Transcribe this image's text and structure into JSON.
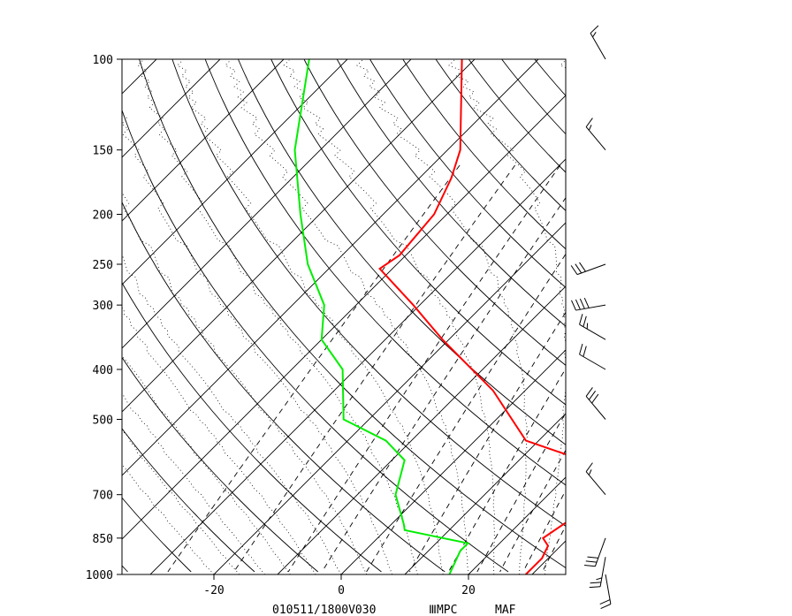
{
  "chart_data": {
    "type": "line",
    "title": "",
    "xlabel": "",
    "ylabel": "",
    "footer": {
      "stamp": "010511/1800V030",
      "source": "ⅢMPC",
      "station": "MAF"
    },
    "x_ticks": [
      "-20",
      "0",
      "20"
    ],
    "x_tick_values": [
      -20,
      0,
      20
    ],
    "y_ticks": [
      "100",
      "150",
      "200",
      "250",
      "300",
      "400",
      "500",
      "700",
      "850",
      "1000"
    ],
    "y_tick_values": [
      100,
      150,
      200,
      250,
      300,
      400,
      500,
      700,
      850,
      1000
    ],
    "xlim": [
      -34,
      35
    ],
    "ylim": [
      1000,
      100
    ],
    "y_scale": "log",
    "skew": "temperature isotherms skewed 45°",
    "grid": true,
    "series": [
      {
        "color": "#ff0000",
        "points": [
          {
            "p": 1000,
            "t": 29
          },
          {
            "p": 930,
            "t": 29
          },
          {
            "p": 880,
            "t": 28
          },
          {
            "p": 850,
            "t": 26
          },
          {
            "p": 800,
            "t": 27
          },
          {
            "p": 730,
            "t": 29
          },
          {
            "p": 600,
            "t": 20
          },
          {
            "p": 550,
            "t": 8
          },
          {
            "p": 440,
            "t": -5
          },
          {
            "p": 350,
            "t": -21
          },
          {
            "p": 300,
            "t": -31
          },
          {
            "p": 255,
            "t": -42
          },
          {
            "p": 240,
            "t": -41
          },
          {
            "p": 200,
            "t": -42
          },
          {
            "p": 170,
            "t": -45
          },
          {
            "p": 150,
            "t": -48
          },
          {
            "p": 100,
            "t": -62
          }
        ]
      },
      {
        "color": "#00ee00",
        "points": [
          {
            "p": 1000,
            "t": 17
          },
          {
            "p": 900,
            "t": 15
          },
          {
            "p": 870,
            "t": 15
          },
          {
            "p": 820,
            "t": 3
          },
          {
            "p": 800,
            "t": 2
          },
          {
            "p": 700,
            "t": -4
          },
          {
            "p": 600,
            "t": -8
          },
          {
            "p": 550,
            "t": -14
          },
          {
            "p": 500,
            "t": -24
          },
          {
            "p": 400,
            "t": -32
          },
          {
            "p": 350,
            "t": -40
          },
          {
            "p": 300,
            "t": -45
          },
          {
            "p": 250,
            "t": -54
          },
          {
            "p": 200,
            "t": -63
          },
          {
            "p": 150,
            "t": -74
          },
          {
            "p": 100,
            "t": -86
          }
        ]
      }
    ],
    "wind_barbs": [
      {
        "p": 1000,
        "dir": 170,
        "speed": 20
      },
      {
        "p": 925,
        "dir": 190,
        "speed": 25
      },
      {
        "p": 850,
        "dir": 200,
        "speed": 30
      },
      {
        "p": 700,
        "dir": 320,
        "speed": 15
      },
      {
        "p": 500,
        "dir": 320,
        "speed": 30
      },
      {
        "p": 400,
        "dir": 300,
        "speed": 20
      },
      {
        "p": 350,
        "dir": 300,
        "speed": 25
      },
      {
        "p": 300,
        "dir": 260,
        "speed": 40
      },
      {
        "p": 250,
        "dir": 250,
        "speed": 30
      },
      {
        "p": 150,
        "dir": 320,
        "speed": 15
      },
      {
        "p": 100,
        "dir": 330,
        "speed": 15
      }
    ]
  }
}
